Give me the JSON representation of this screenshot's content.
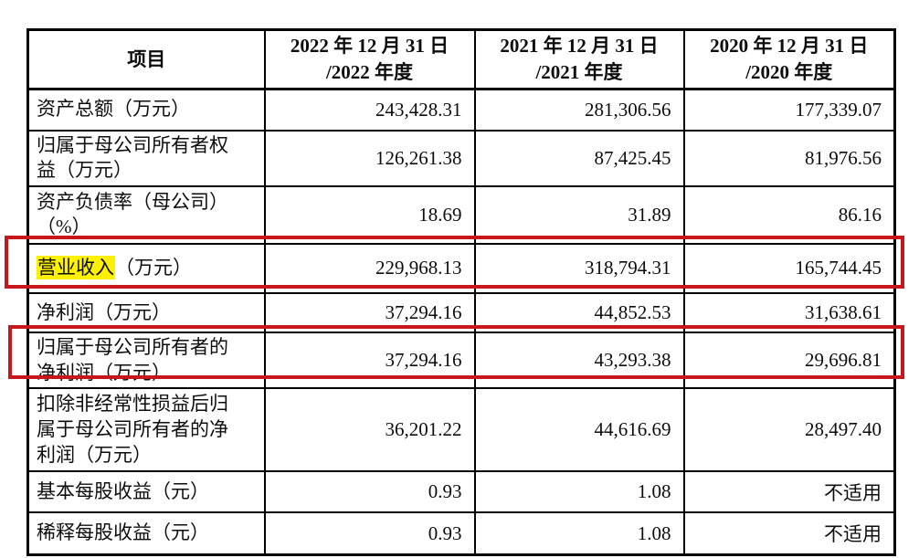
{
  "colors": {
    "highlight_yellow": "#fdf000",
    "annotation_red": "#c8161d",
    "table_border": "#000000"
  },
  "table": {
    "columns": [
      {
        "title": "项目"
      },
      {
        "line1": "2022 年 12 月 31 日",
        "line2": "/2022 年度"
      },
      {
        "line1": "2021 年 12 月 31 日",
        "line2": "/2021 年度"
      },
      {
        "line1": "2020 年 12 月 31 日",
        "line2": "/2020 年度"
      }
    ],
    "rows": [
      {
        "label_parts": [
          {
            "text": "资产总额（万元）"
          }
        ],
        "values": [
          "243,428.31",
          "281,306.56",
          "177,339.07"
        ]
      },
      {
        "label_parts": [
          {
            "text": "归属于母公司所有者权益（万元）"
          }
        ],
        "values": [
          "126,261.38",
          "87,425.45",
          "81,976.56"
        ]
      },
      {
        "label_parts": [
          {
            "text": "资产负债率（母公司）（%）"
          }
        ],
        "values": [
          "18.69",
          "31.89",
          "86.16"
        ]
      },
      {
        "label_parts": [
          {
            "text": "营业收入",
            "highlight": true
          },
          {
            "text": "（万元）"
          }
        ],
        "values": [
          "229,968.13",
          "318,794.31",
          "165,744.45"
        ],
        "annotated": true
      },
      {
        "label_parts": [
          {
            "text": "净利润（万元）"
          }
        ],
        "values": [
          "37,294.16",
          "44,852.53",
          "31,638.61"
        ]
      },
      {
        "label_parts": [
          {
            "text": "归属于母公司所有者的净利润（万元）"
          }
        ],
        "values": [
          "37,294.16",
          "43,293.38",
          "29,696.81"
        ],
        "annotated": true
      },
      {
        "label_parts": [
          {
            "text": "扣除非经常性损益后归属于母公司所有者的净利润（万元）"
          }
        ],
        "values": [
          "36,201.22",
          "44,616.69",
          "28,497.40"
        ]
      },
      {
        "label_parts": [
          {
            "text": "基本每股收益（元）"
          }
        ],
        "values": [
          "0.93",
          "1.08",
          "不适用"
        ]
      },
      {
        "label_parts": [
          {
            "text": "稀释每股收益（元）"
          }
        ],
        "values": [
          "0.93",
          "1.08",
          "不适用"
        ]
      }
    ]
  },
  "annotations": [
    {
      "name": "revenue-row-red-box"
    },
    {
      "name": "parent-net-profit-row-red-box"
    }
  ]
}
